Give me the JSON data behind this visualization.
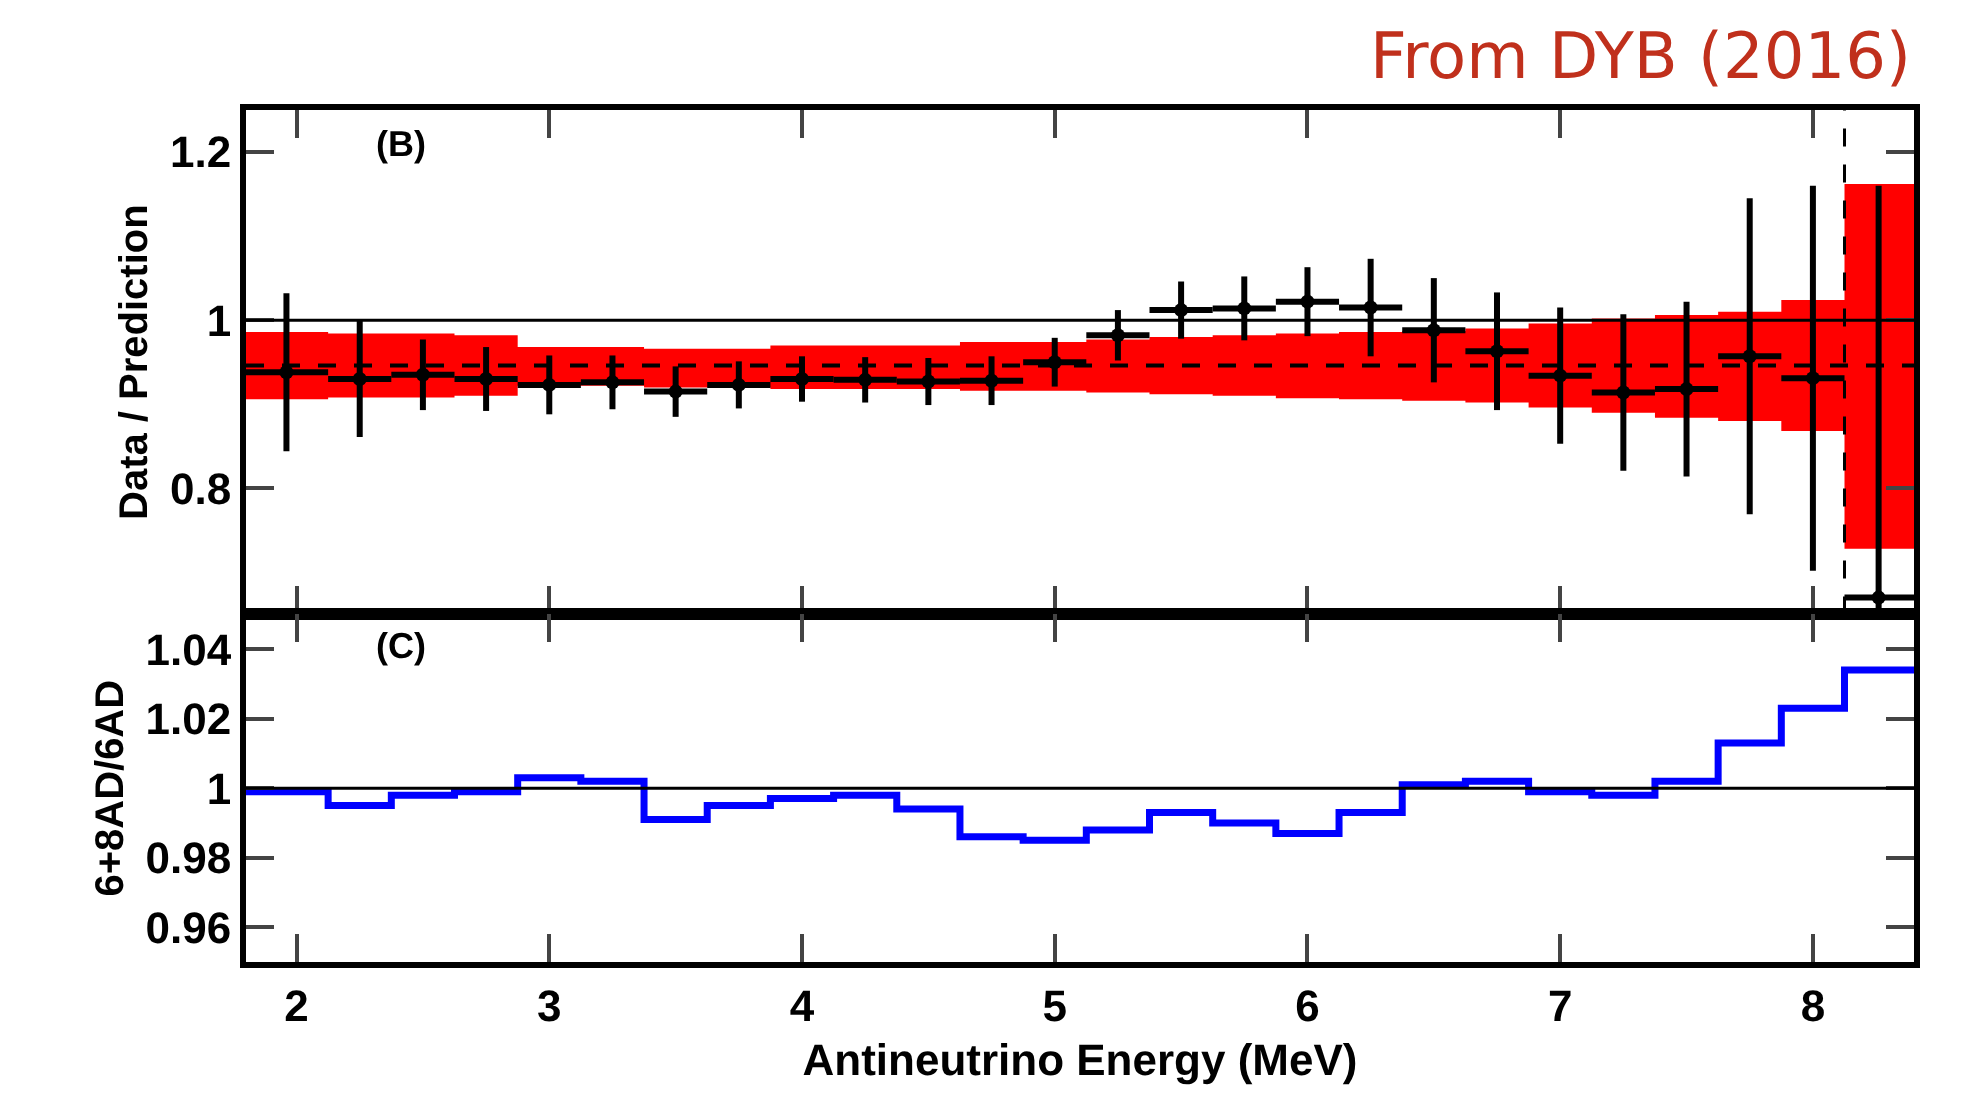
{
  "chart_data": [
    {
      "type": "scatter",
      "title": "From DYB (2016)",
      "ylabel": "Data / Prediction",
      "annotations": [
        "(B)"
      ],
      "xlim": [
        1.8,
        8.4
      ],
      "xticks": [
        2,
        3,
        4,
        5,
        6,
        7,
        8
      ],
      "ylim": [
        0.65,
        1.25
      ],
      "yticks": [
        0.8,
        1,
        1.2
      ],
      "tick_labels": "y",
      "grid": false,
      "series": [
        {
          "type": "line",
          "color": "#000000",
          "line_style": "dashed",
          "x": [
            1.8,
            2.125,
            2.625,
            2.875,
            3.375,
            3.875,
            4.625,
            4.875,
            5.125,
            5.375,
            5.625,
            5.875,
            6.125,
            6.375,
            6.625,
            6.875,
            7.125,
            7.375,
            7.625,
            7.875,
            8.125,
            8.4
          ],
          "values": [
            0.946,
            0.946,
            0.946,
            0.946,
            0.946,
            0.946,
            0.946,
            0.946,
            0.946,
            0.946,
            0.946,
            0.946,
            0.946,
            0.946,
            0.946,
            0.946,
            0.946,
            0.946,
            0.946,
            0.946,
            0.946,
            0.946
          ],
          "upper": [
            0.986,
            0.984,
            0.982,
            0.968,
            0.966,
            0.97,
            0.974,
            0.974,
            0.977,
            0.98,
            0.982,
            0.984,
            0.986,
            0.987,
            0.99,
            0.996,
            1.002,
            1.006,
            1.01,
            1.024,
            1.162,
            1.162
          ],
          "lower": [
            0.906,
            0.908,
            0.91,
            0.922,
            0.92,
            0.918,
            0.916,
            0.916,
            0.914,
            0.912,
            0.91,
            0.907,
            0.906,
            0.904,
            0.902,
            0.896,
            0.89,
            0.884,
            0.88,
            0.868,
            0.728,
            0.728
          ]
        },
        {
          "color": "#000000",
          "marker": "circle",
          "x": [
            1.96,
            2.25,
            2.5,
            2.75,
            3.0,
            3.25,
            3.5,
            3.75,
            4.0,
            4.25,
            4.5,
            4.75,
            5.0,
            5.25,
            5.5,
            5.75,
            6.0,
            6.25,
            6.5,
            6.75,
            7.0,
            7.25,
            7.5,
            7.75,
            8.0,
            8.26
          ],
          "values": [
            0.938,
            0.93,
            0.935,
            0.93,
            0.923,
            0.926,
            0.915,
            0.923,
            0.93,
            0.929,
            0.927,
            0.928,
            0.95,
            0.982,
            1.012,
            1.014,
            1.022,
            1.015,
            0.988,
            0.963,
            0.934,
            0.914,
            0.918,
            0.957,
            0.931,
            0.67
          ],
          "errors": [
            0.094,
            0.069,
            0.042,
            0.038,
            0.035,
            0.032,
            0.03,
            0.028,
            0.027,
            0.027,
            0.028,
            0.029,
            0.029,
            0.03,
            0.034,
            0.038,
            0.041,
            0.058,
            0.062,
            0.07,
            0.081,
            0.093,
            0.104,
            0.188,
            0.229,
            [
              0.65,
              1.16
            ]
          ],
          "xerrors": [
            [
              1.8,
              2.125
            ],
            0.125,
            0.125,
            0.125,
            0.125,
            0.125,
            0.125,
            0.125,
            0.125,
            0.125,
            0.125,
            0.125,
            0.125,
            0.125,
            0.125,
            0.125,
            0.125,
            0.125,
            0.125,
            0.125,
            0.125,
            0.125,
            0.125,
            0.125,
            0.125,
            [
              8.125,
              8.4
            ]
          ]
        }
      ],
      "ref_lines": [
        {
          "axis": "y",
          "value": 1,
          "line_style": "solid"
        },
        {
          "axis": "x",
          "value": 8.125,
          "line_style": "dashed"
        }
      ]
    },
    {
      "type": "step",
      "xlabel": "Antineutrino Energy (MeV)",
      "ylabel": "6+8AD/6AD",
      "annotations": [
        "(C)"
      ],
      "xlim": [
        1.8,
        8.4
      ],
      "xticks": [
        2,
        3,
        4,
        5,
        6,
        7,
        8
      ],
      "ylim": [
        0.95,
        1.05
      ],
      "yticks": [
        0.96,
        0.98,
        1,
        1.02,
        1.04
      ],
      "grid": false,
      "series": [
        {
          "color": "#0000ff",
          "x": [
            1.8,
            2.125,
            2.375,
            2.625,
            2.875,
            3.125,
            3.375,
            3.625,
            3.875,
            4.125,
            4.375,
            4.625,
            4.875,
            5.125,
            5.375,
            5.625,
            5.875,
            6.125,
            6.375,
            6.625,
            6.875,
            7.125,
            7.375,
            7.625,
            7.875,
            8.125,
            8.4
          ],
          "values": [
            0.999,
            0.995,
            0.998,
            0.999,
            1.003,
            1.002,
            0.991,
            0.995,
            0.997,
            0.998,
            0.994,
            0.986,
            0.985,
            0.988,
            0.993,
            0.99,
            0.987,
            0.993,
            1.001,
            1.002,
            0.999,
            0.998,
            1.002,
            1.013,
            1.023,
            1.034,
            1.034
          ]
        }
      ],
      "ref_lines": [
        {
          "axis": "y",
          "value": 1,
          "line_style": "solid"
        }
      ]
    }
  ]
}
